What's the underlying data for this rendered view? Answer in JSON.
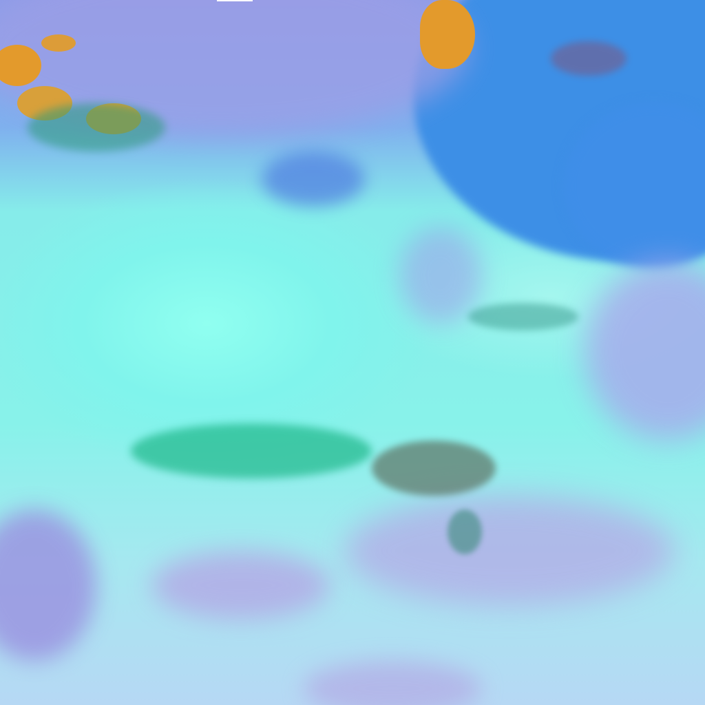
{
  "image": {
    "kind": "false-color satellite scene",
    "colors": {
      "sea": "#3d8fe6",
      "desert": "#86f2ea",
      "cloud_haze": "#a9a8e6",
      "land_orange": "#e39a2c",
      "vegetation": "#1fb88a",
      "top_bar": "#ffffff"
    }
  }
}
